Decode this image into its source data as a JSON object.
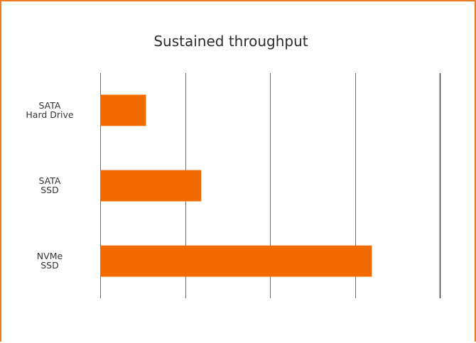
{
  "chart_data": {
    "type": "bar",
    "orientation": "horizontal",
    "title": "Sustained throughput",
    "categories": [
      [
        "SATA",
        "Hard Drive"
      ],
      [
        "SATA",
        "SSD"
      ],
      [
        "NVMe",
        "SSD"
      ]
    ],
    "values": [
      0.54,
      1.19,
      3.2
    ],
    "xlim": [
      0,
      4
    ],
    "xlabel": "",
    "ylabel": "",
    "grid": true,
    "legend": "none",
    "colors": {
      "bar": "#f06a00",
      "frame": "#f07a1e"
    }
  }
}
